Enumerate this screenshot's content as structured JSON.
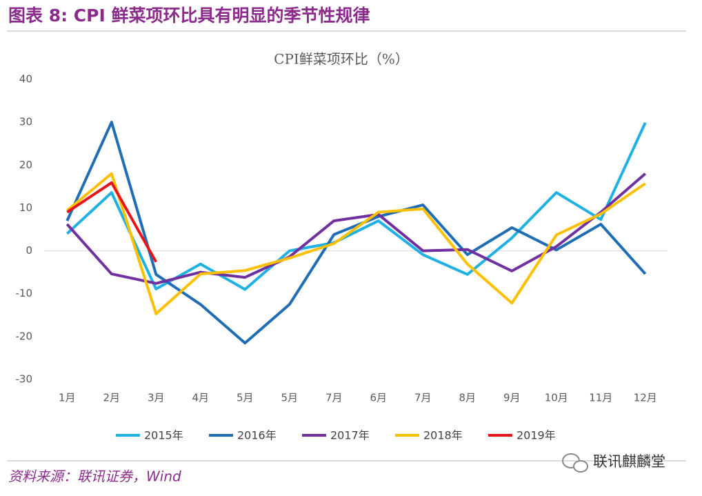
{
  "header": {
    "title": "图表 8: CPI 鲜菜项环比具有明显的季节性规律"
  },
  "chart_data": {
    "type": "line",
    "title": "CPI鲜菜项环比（%）",
    "categories": [
      "1月",
      "2月",
      "3月",
      "4月",
      "5月",
      "5月",
      "7月",
      "6月",
      "7月",
      "8月",
      "9月",
      "10月",
      "11月",
      "12月"
    ],
    "series": [
      {
        "name": "2015年",
        "color": "#1fb0e4",
        "values": [
          4,
          13.6,
          -8.9,
          -3.1,
          -9,
          0,
          1.9,
          7,
          -0.9,
          -5.5,
          3,
          13.6,
          7.3,
          29.9
        ]
      },
      {
        "name": "2016年",
        "color": "#1f6db4",
        "values": [
          7,
          30,
          -5.5,
          -12.5,
          -21.5,
          -12.5,
          3.8,
          8,
          10.7,
          -0.9,
          5.4,
          0.2,
          6.2,
          -5.4
        ]
      },
      {
        "name": "2017年",
        "color": "#7030a0",
        "values": [
          6.2,
          -5.4,
          -7.6,
          -5,
          -6.2,
          -1.4,
          7,
          8.5,
          0,
          0.3,
          -4.7,
          1,
          9,
          18
        ]
      },
      {
        "name": "2018年",
        "color": "#fdc000",
        "values": [
          9.4,
          18,
          -14.7,
          -5.4,
          -4.6,
          -1.7,
          1.7,
          9,
          9.8,
          -3.1,
          -12.2,
          3.7,
          8.6,
          15.7
        ]
      },
      {
        "name": "2019年",
        "color": "#e8141b",
        "values": [
          9,
          15.9,
          -2.6,
          null,
          null,
          null,
          null,
          null,
          null,
          null,
          null,
          null,
          null,
          null
        ]
      }
    ],
    "ylim": [
      -30,
      40
    ],
    "yticks": [
      -30,
      -20,
      -10,
      0,
      10,
      20,
      30,
      40
    ],
    "legend": "bottom"
  },
  "footer": {
    "source": "资料来源：联讯证券，Wind",
    "watermark": "联讯麒麟堂"
  }
}
